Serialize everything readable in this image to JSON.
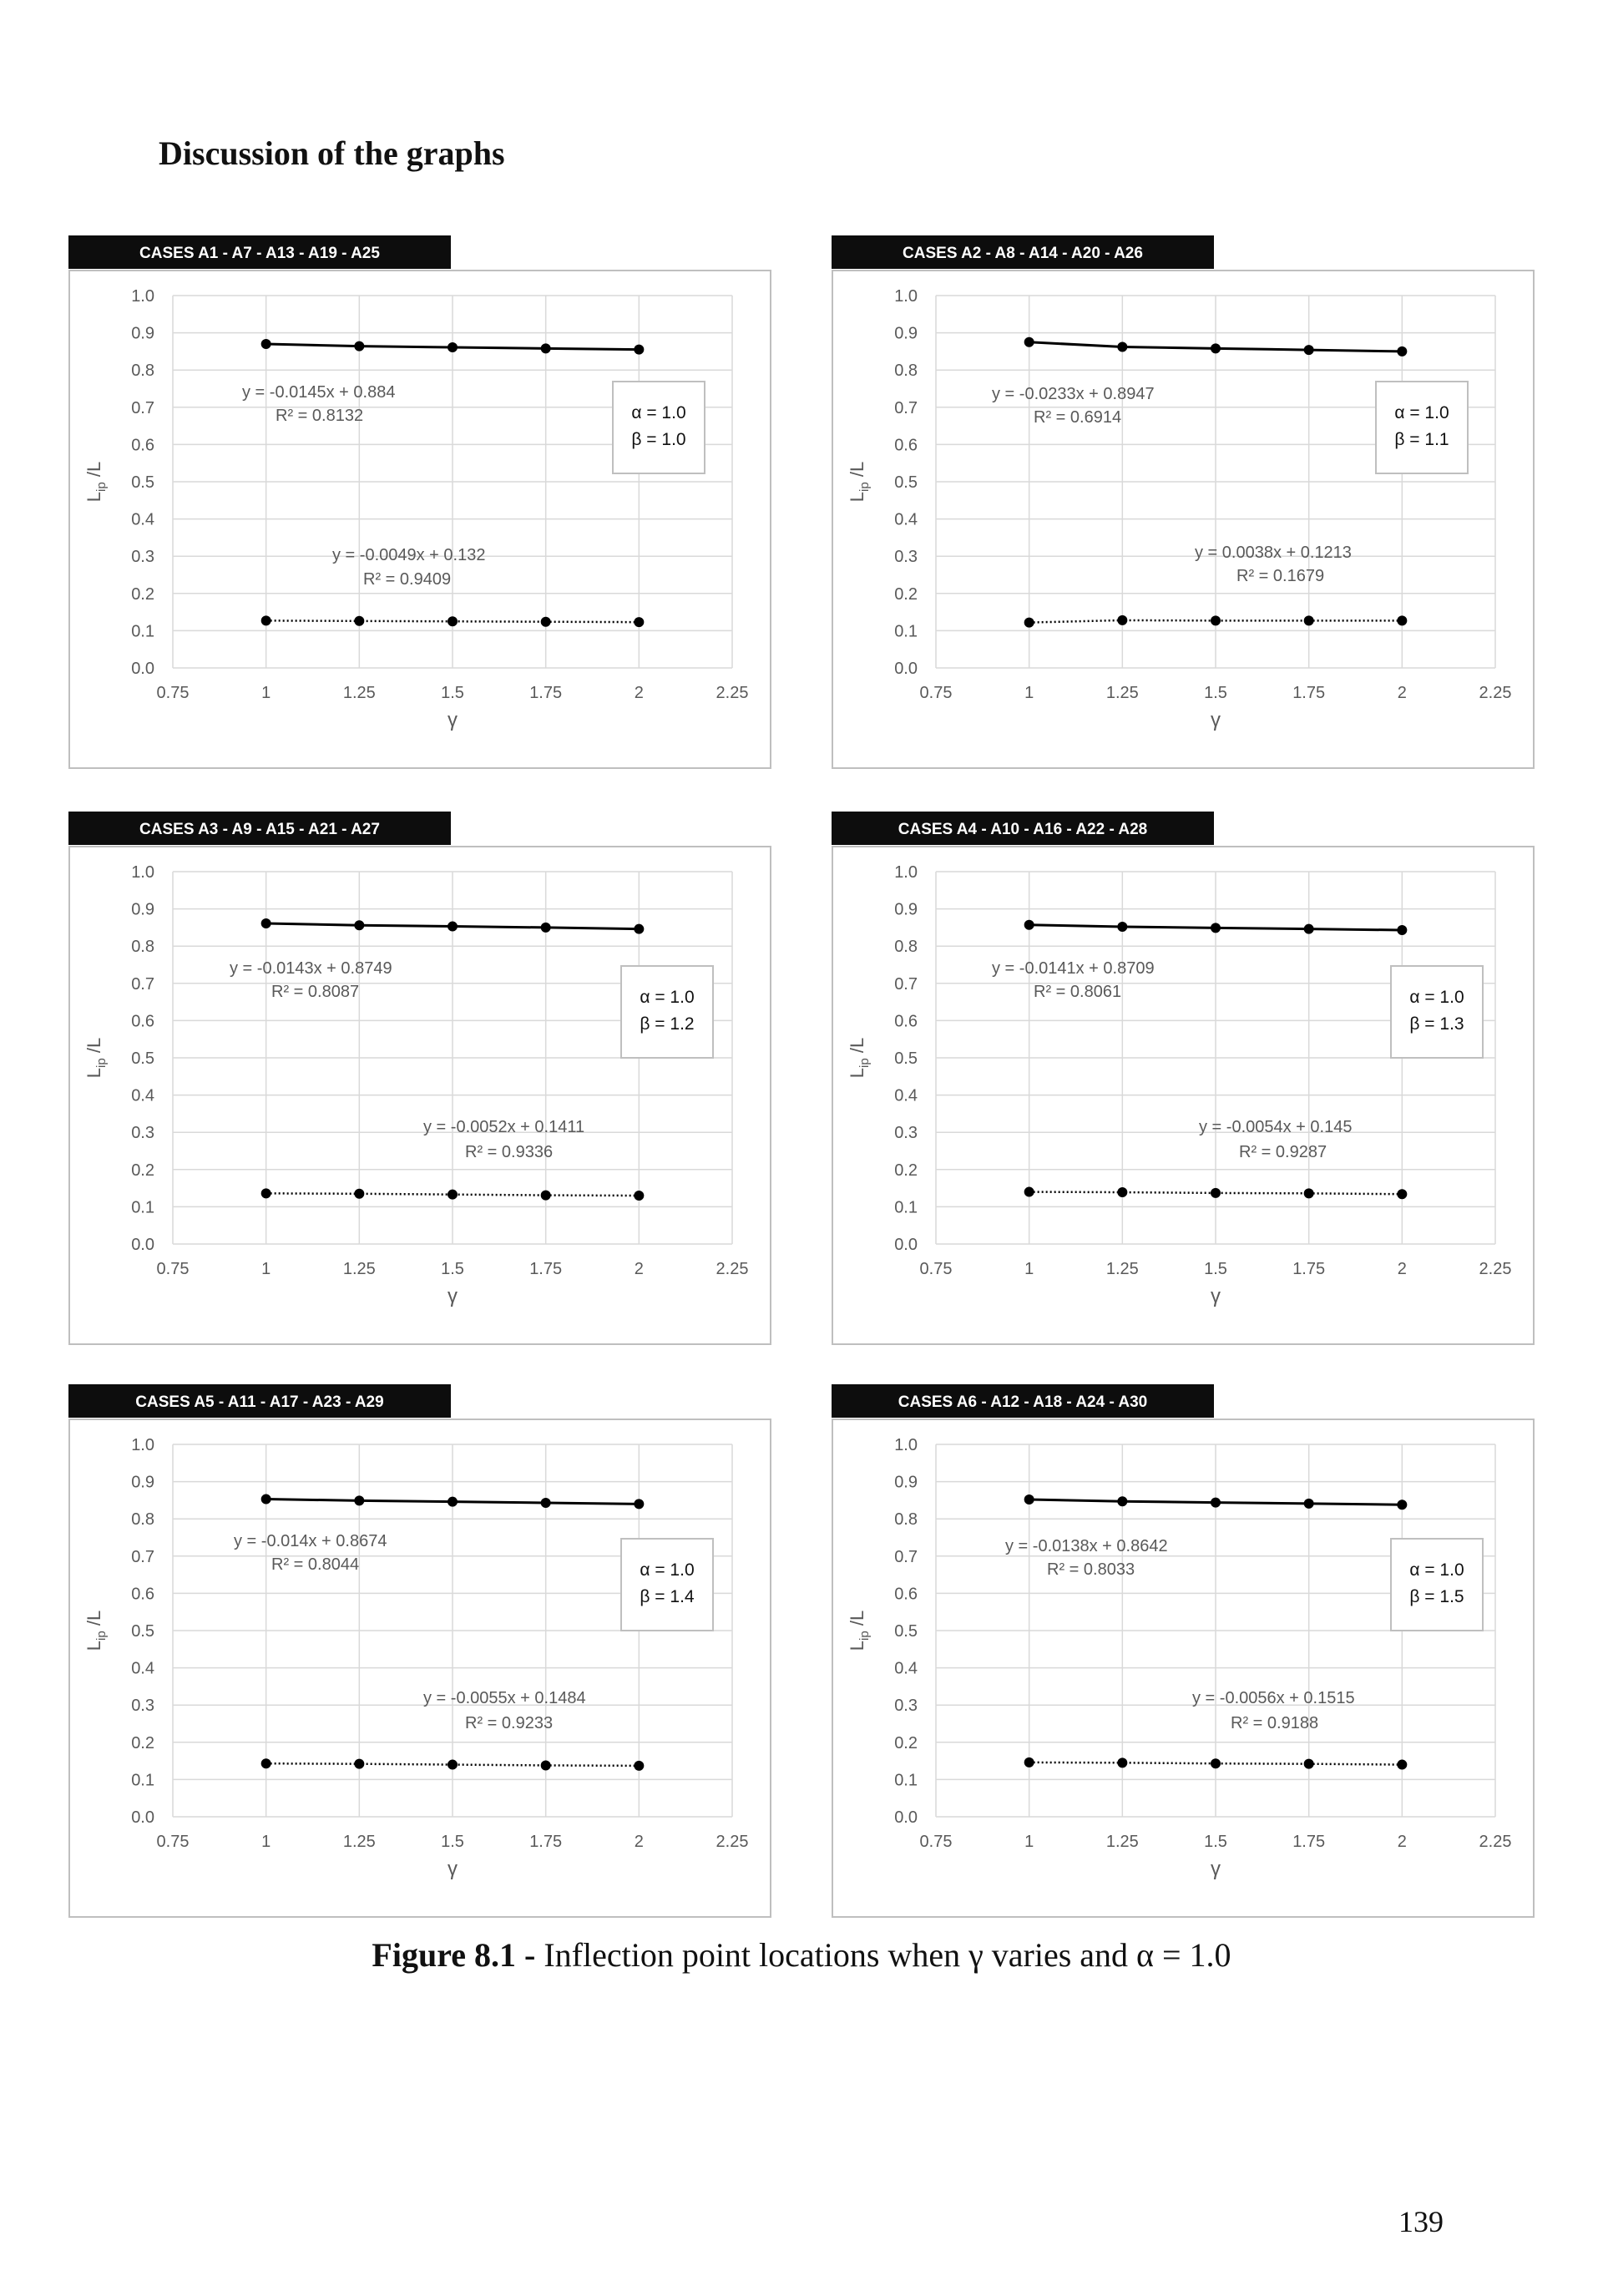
{
  "heading": "Discussion of the graphs",
  "caption": {
    "label": "Figure 8.1 -",
    "text": "Inflection point locations when γ varies and α = 1.0"
  },
  "page_number": "139",
  "colors": {
    "title_bar": "#0d0d0d",
    "series": "#000000",
    "grid": "#d9d9d9",
    "label_text": "#595959",
    "frame": "#bfbfbf"
  },
  "chart_data": [
    {
      "type": "line",
      "title": "CASES A1 - A7 - A13 - A19 - A25",
      "xlabel": "γ",
      "ylabel": "Lip /L",
      "xlim": [
        0.75,
        2.25
      ],
      "ylim": [
        0,
        1
      ],
      "x_ticks": [
        "0.75",
        "1",
        "1.25",
        "1.5",
        "1.75",
        "2",
        "2.25"
      ],
      "y_ticks": [
        "0.0",
        "0.1",
        "0.2",
        "0.3",
        "0.4",
        "0.5",
        "0.6",
        "0.7",
        "0.8",
        "0.9",
        "1.0"
      ],
      "grid": true,
      "x": [
        1,
        1.25,
        1.5,
        1.75,
        2
      ],
      "series": [
        {
          "values": [
            0.87,
            0.864,
            0.861,
            0.858,
            0.855
          ],
          "style": "solid",
          "trendline": "y = -0.0145x + 0.884",
          "r2": "R² = 0.8132"
        },
        {
          "values": [
            0.127,
            0.126,
            0.125,
            0.124,
            0.123
          ],
          "style": "dotted",
          "trendline": "y = -0.0049x + 0.132",
          "r2": "R² = 0.9409"
        }
      ],
      "params": {
        "alpha": "α = 1.0",
        "beta": "β = 1.0"
      }
    },
    {
      "type": "line",
      "title": "CASES A2 - A8 - A14 - A20 - A26",
      "xlabel": "γ",
      "ylabel": "Lip /L",
      "xlim": [
        0.75,
        2.25
      ],
      "ylim": [
        0,
        1
      ],
      "x_ticks": [
        "0.75",
        "1",
        "1.25",
        "1.5",
        "1.75",
        "2",
        "2.25"
      ],
      "y_ticks": [
        "0.0",
        "0.1",
        "0.2",
        "0.3",
        "0.4",
        "0.5",
        "0.6",
        "0.7",
        "0.8",
        "0.9",
        "1.0"
      ],
      "grid": true,
      "x": [
        1,
        1.25,
        1.5,
        1.75,
        2
      ],
      "series": [
        {
          "values": [
            0.875,
            0.862,
            0.858,
            0.854,
            0.85
          ],
          "style": "solid",
          "trendline": "y = -0.0233x + 0.8947",
          "r2": "R² = 0.6914"
        },
        {
          "values": [
            0.122,
            0.128,
            0.127,
            0.127,
            0.127
          ],
          "style": "dotted",
          "trendline": "y = 0.0038x + 0.1213",
          "r2": "R² = 0.1679"
        }
      ],
      "params": {
        "alpha": "α = 1.0",
        "beta": "β = 1.1"
      }
    },
    {
      "type": "line",
      "title": "CASES A3 - A9 - A15 - A21 - A27",
      "xlabel": "γ",
      "ylabel": "Lip /L",
      "xlim": [
        0.75,
        2.25
      ],
      "ylim": [
        0,
        1
      ],
      "x_ticks": [
        "0.75",
        "1",
        "1.25",
        "1.5",
        "1.75",
        "2",
        "2.25"
      ],
      "y_ticks": [
        "0.0",
        "0.1",
        "0.2",
        "0.3",
        "0.4",
        "0.5",
        "0.6",
        "0.7",
        "0.8",
        "0.9",
        "1.0"
      ],
      "grid": true,
      "x": [
        1,
        1.25,
        1.5,
        1.75,
        2
      ],
      "series": [
        {
          "values": [
            0.861,
            0.856,
            0.853,
            0.85,
            0.846
          ],
          "style": "solid",
          "trendline": "y = -0.0143x + 0.8749",
          "r2": "R² = 0.8087"
        },
        {
          "values": [
            0.136,
            0.135,
            0.133,
            0.131,
            0.13
          ],
          "style": "dotted",
          "trendline": "y = -0.0052x + 0.1411",
          "r2": "R² = 0.9336"
        }
      ],
      "params": {
        "alpha": "α = 1.0",
        "beta": "β = 1.2"
      }
    },
    {
      "type": "line",
      "title": "CASES A4 - A10 - A16 - A22 - A28",
      "xlabel": "γ",
      "ylabel": "Lip /L",
      "xlim": [
        0.75,
        2.25
      ],
      "ylim": [
        0,
        1
      ],
      "x_ticks": [
        "0.75",
        "1",
        "1.25",
        "1.5",
        "1.75",
        "2",
        "2.25"
      ],
      "y_ticks": [
        "0.0",
        "0.1",
        "0.2",
        "0.3",
        "0.4",
        "0.5",
        "0.6",
        "0.7",
        "0.8",
        "0.9",
        "1.0"
      ],
      "grid": true,
      "x": [
        1,
        1.25,
        1.5,
        1.75,
        2
      ],
      "series": [
        {
          "values": [
            0.857,
            0.852,
            0.849,
            0.846,
            0.843
          ],
          "style": "solid",
          "trendline": "y = -0.0141x + 0.8709",
          "r2": "R² = 0.8061"
        },
        {
          "values": [
            0.14,
            0.139,
            0.137,
            0.136,
            0.134
          ],
          "style": "dotted",
          "trendline": "y = -0.0054x + 0.145",
          "r2": "R² = 0.9287"
        }
      ],
      "params": {
        "alpha": "α = 1.0",
        "beta": "β = 1.3"
      }
    },
    {
      "type": "line",
      "title": "CASES A5 - A11 - A17 - A23 - A29",
      "xlabel": "γ",
      "ylabel": "Lip /L",
      "xlim": [
        0.75,
        2.25
      ],
      "ylim": [
        0,
        1
      ],
      "x_ticks": [
        "0.75",
        "1",
        "1.25",
        "1.5",
        "1.75",
        "2",
        "2.25"
      ],
      "y_ticks": [
        "0.0",
        "0.1",
        "0.2",
        "0.3",
        "0.4",
        "0.5",
        "0.6",
        "0.7",
        "0.8",
        "0.9",
        "1.0"
      ],
      "grid": true,
      "x": [
        1,
        1.25,
        1.5,
        1.75,
        2
      ],
      "series": [
        {
          "values": [
            0.853,
            0.849,
            0.846,
            0.843,
            0.84
          ],
          "style": "solid",
          "trendline": "y = -0.014x + 0.8674",
          "r2": "R² = 0.8044"
        },
        {
          "values": [
            0.143,
            0.142,
            0.14,
            0.138,
            0.137
          ],
          "style": "dotted",
          "trendline": "y = -0.0055x + 0.1484",
          "r2": "R² = 0.9233"
        }
      ],
      "params": {
        "alpha": "α = 1.0",
        "beta": "β = 1.4"
      }
    },
    {
      "type": "line",
      "title": "CASES A6 - A12 - A18 - A24 - A30",
      "xlabel": "γ",
      "ylabel": "Lip /L",
      "xlim": [
        0.75,
        2.25
      ],
      "ylim": [
        0,
        1
      ],
      "x_ticks": [
        "0.75",
        "1",
        "1.25",
        "1.5",
        "1.75",
        "2",
        "2.25"
      ],
      "y_ticks": [
        "0.0",
        "0.1",
        "0.2",
        "0.3",
        "0.4",
        "0.5",
        "0.6",
        "0.7",
        "0.8",
        "0.9",
        "1.0"
      ],
      "grid": true,
      "x": [
        1,
        1.25,
        1.5,
        1.75,
        2
      ],
      "series": [
        {
          "values": [
            0.852,
            0.847,
            0.844,
            0.841,
            0.838
          ],
          "style": "solid",
          "trendline": "y = -0.0138x + 0.8642",
          "r2": "R² = 0.8033"
        },
        {
          "values": [
            0.146,
            0.145,
            0.143,
            0.142,
            0.14
          ],
          "style": "dotted",
          "trendline": "y = -0.0056x + 0.1515",
          "r2": "R² = 0.9188"
        }
      ],
      "params": {
        "alpha": "α = 1.0",
        "beta": "β = 1.5"
      }
    }
  ]
}
